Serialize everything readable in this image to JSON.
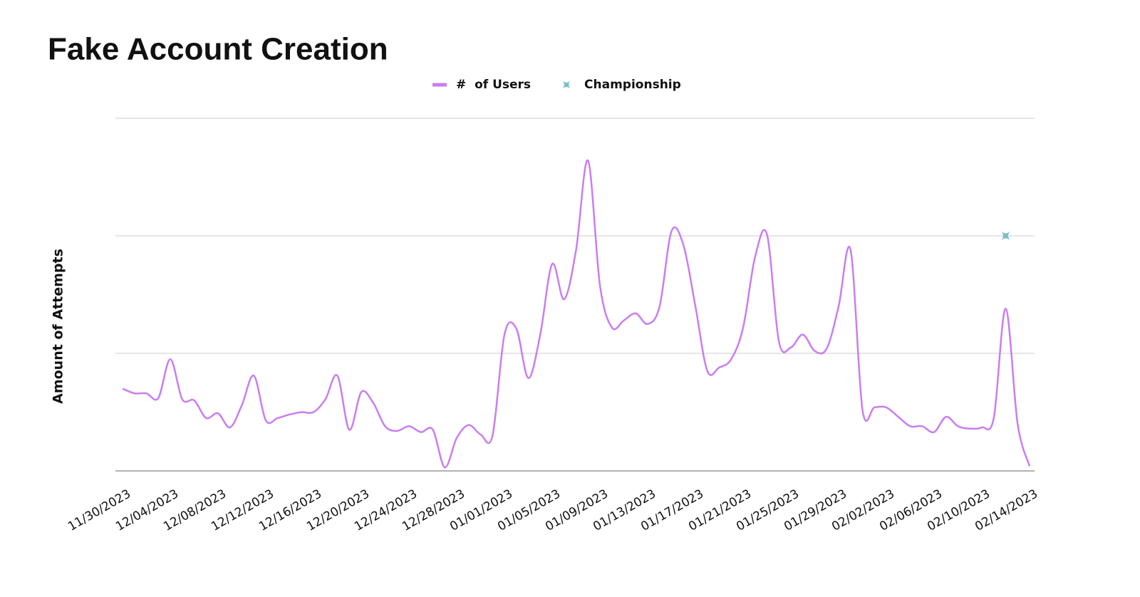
{
  "chart_data": {
    "type": "line",
    "title": "Fake Account Creation",
    "y_label": "Amount of Attempts",
    "categories": [
      "11/30/2023",
      null,
      null,
      null,
      "12/04/2023",
      null,
      null,
      null,
      "12/08/2023",
      null,
      null,
      null,
      "12/12/2023",
      null,
      null,
      null,
      "12/16/2023",
      null,
      null,
      null,
      "12/20/2023",
      null,
      null,
      null,
      "12/24/2023",
      null,
      null,
      null,
      "12/28/2023",
      null,
      null,
      null,
      "01/01/2023",
      null,
      null,
      null,
      "01/05/2023",
      null,
      null,
      null,
      "01/09/2023",
      null,
      null,
      null,
      "01/13/2023",
      null,
      null,
      null,
      "01/17/2023",
      null,
      null,
      null,
      "01/21/2023",
      null,
      null,
      null,
      "01/25/2023",
      null,
      null,
      null,
      "01/29/2023",
      null,
      null,
      null,
      "02/02/2023",
      null,
      null,
      null,
      "02/06/2023",
      null,
      null,
      null,
      "02/10/2023",
      null,
      null,
      null,
      "02/14/2023"
    ],
    "series": [
      {
        "name": "#  of Users",
        "color": "#c97ef0",
        "marker": "none",
        "values": [
          0.7,
          0.66,
          0.66,
          0.62,
          0.95,
          0.61,
          0.6,
          0.45,
          0.49,
          0.37,
          0.56,
          0.81,
          0.43,
          0.45,
          0.48,
          0.5,
          0.5,
          0.61,
          0.81,
          0.35,
          0.67,
          0.58,
          0.38,
          0.34,
          0.38,
          0.33,
          0.35,
          0.03,
          0.28,
          0.39,
          0.31,
          0.3,
          1.16,
          1.21,
          0.79,
          1.16,
          1.76,
          1.46,
          1.88,
          2.64,
          1.58,
          1.22,
          1.28,
          1.34,
          1.25,
          1.4,
          2.04,
          1.92,
          1.4,
          0.85,
          0.88,
          0.95,
          1.22,
          1.82,
          2.01,
          1.1,
          1.05,
          1.16,
          1.02,
          1.04,
          1.4,
          1.88,
          0.52,
          0.54,
          0.54,
          0.46,
          0.38,
          0.38,
          0.33,
          0.46,
          0.38,
          0.36,
          0.37,
          0.45,
          1.38,
          0.4,
          0.04
        ]
      },
      {
        "name": "Championship",
        "color": "#7bbfc4",
        "marker": "star",
        "values": [
          null,
          null,
          null,
          null,
          null,
          null,
          null,
          null,
          null,
          null,
          null,
          null,
          null,
          null,
          null,
          null,
          null,
          null,
          null,
          null,
          null,
          null,
          null,
          null,
          null,
          null,
          null,
          null,
          null,
          null,
          null,
          null,
          null,
          null,
          null,
          null,
          null,
          null,
          null,
          null,
          null,
          null,
          null,
          null,
          null,
          null,
          null,
          null,
          null,
          null,
          null,
          null,
          null,
          null,
          null,
          null,
          null,
          null,
          null,
          null,
          null,
          null,
          null,
          null,
          null,
          null,
          null,
          null,
          null,
          null,
          null,
          null,
          null,
          null,
          2,
          null,
          null
        ]
      }
    ],
    "ylim": [
      0,
      3
    ],
    "yticks": [
      0,
      1,
      2,
      3
    ],
    "grid": true,
    "legend": "top"
  }
}
